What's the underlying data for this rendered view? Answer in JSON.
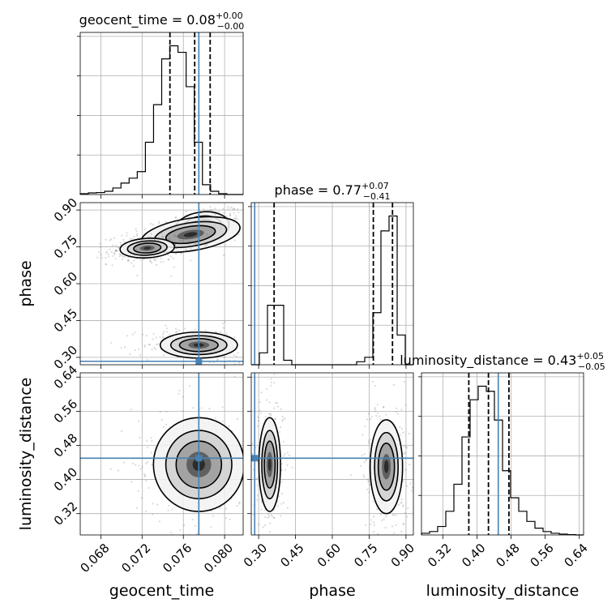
{
  "chart_data": {
    "type": "corner",
    "params": [
      {
        "name": "geocent_time",
        "label": "geocent_time",
        "title": "geocent_time = 0.08",
        "title_sup": "+0.00",
        "title_sub": "−0.00",
        "range": [
          0.066,
          0.0818
        ],
        "ticks": [
          0.068,
          0.072,
          0.076,
          0.08
        ],
        "tick_labels": [
          "0.068",
          "0.072",
          "0.076",
          "0.080"
        ],
        "quantiles": [
          0.0747,
          0.0771,
          0.0786
        ],
        "truth": 0.0775,
        "hist_edges_start": 0.066,
        "hist_bin_width": 0.00079,
        "hist_counts": [
          0.5,
          1,
          1.2,
          2,
          4,
          7,
          10,
          14,
          32,
          55,
          83,
          91,
          87,
          66,
          32,
          6,
          2,
          0.5,
          0,
          0
        ]
      },
      {
        "name": "phase",
        "label": "phase",
        "title": "phase = 0.77",
        "title_sup": "+0.07",
        "title_sub": "−0.41",
        "range": [
          0.27,
          0.93
        ],
        "ticks": [
          0.3,
          0.45,
          0.6,
          0.75,
          0.9
        ],
        "tick_labels": [
          "0.30",
          "0.45",
          "0.60",
          "0.75",
          "0.90"
        ],
        "quantiles": [
          0.363,
          0.767,
          0.845
        ],
        "truth": 0.284,
        "hist_edges_start": 0.27,
        "hist_bin_width": 0.033,
        "hist_counts": [
          0,
          8,
          40,
          40,
          3,
          0,
          0,
          0,
          0,
          0,
          0,
          0,
          0,
          2,
          5,
          35,
          90,
          100,
          20,
          0
        ]
      },
      {
        "name": "luminosity_distance",
        "label": "luminosity_distance",
        "title": "luminosity_distance = 0.43",
        "title_sup": "+0.05",
        "title_sub": "−0.05",
        "range": [
          0.27,
          0.65
        ],
        "ticks": [
          0.32,
          0.4,
          0.48,
          0.56,
          0.64
        ],
        "tick_labels": [
          "0.32",
          "0.40",
          "0.48",
          "0.56",
          "0.64"
        ],
        "quantiles": [
          0.381,
          0.427,
          0.475
        ],
        "truth": 0.45,
        "hist_edges_start": 0.27,
        "hist_bin_width": 0.019,
        "hist_counts": [
          1,
          2,
          5,
          14,
          30,
          58,
          80,
          88,
          85,
          68,
          38,
          22,
          14,
          8,
          4,
          2,
          1,
          0.5,
          0.2,
          0
        ]
      }
    ],
    "pairs": [
      {
        "x": "geocent_time",
        "y": "phase",
        "modes": [
          {
            "cx": 0.0778,
            "cy": 0.83,
            "sx": 0.0012,
            "sy": 0.028,
            "rho": 0.3
          },
          {
            "cx": 0.0767,
            "cy": 0.8,
            "sx": 0.0022,
            "sy": 0.03,
            "rho": 0.6
          },
          {
            "cx": 0.0725,
            "cy": 0.745,
            "sx": 0.0012,
            "sy": 0.018,
            "rho": 0.2
          },
          {
            "cx": 0.0775,
            "cy": 0.35,
            "sx": 0.0017,
            "sy": 0.024,
            "rho": 0.0
          }
        ]
      },
      {
        "x": "geocent_time",
        "y": "luminosity_distance",
        "modes": [
          {
            "cx": 0.0775,
            "cy": 0.435,
            "sx": 0.002,
            "sy": 0.05,
            "rho": 0.0
          }
        ]
      },
      {
        "x": "phase",
        "y": "luminosity_distance",
        "modes": [
          {
            "cx": 0.345,
            "cy": 0.435,
            "sx": 0.02,
            "sy": 0.05,
            "rho": 0.0
          },
          {
            "cx": 0.82,
            "cy": 0.43,
            "sx": 0.03,
            "sy": 0.05,
            "rho": 0.0
          }
        ]
      }
    ],
    "colors": {
      "truth": "#4682b4",
      "density": "#000000",
      "grid": "#b0b0b0"
    },
    "grid": true
  }
}
